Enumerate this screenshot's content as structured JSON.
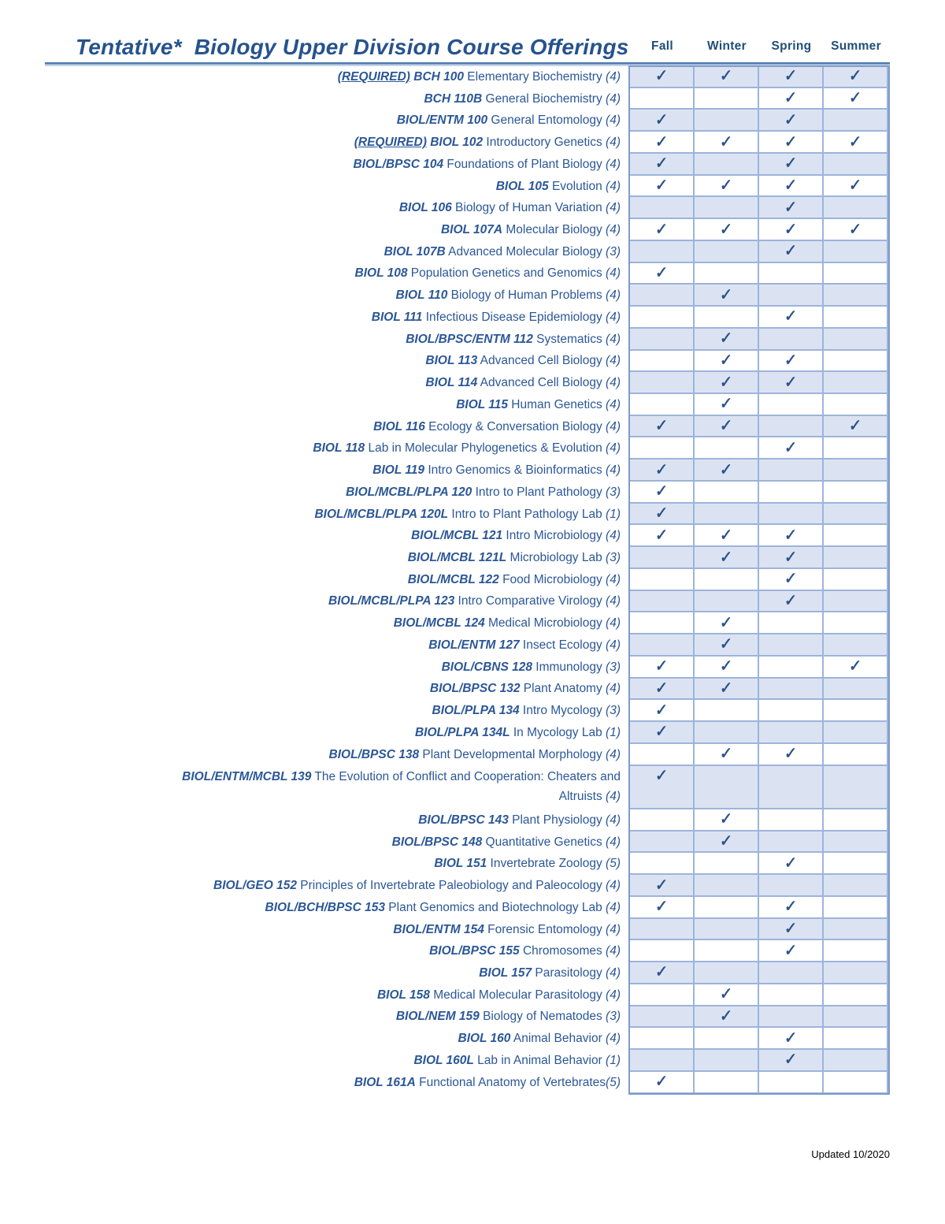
{
  "page": {
    "title": "Tentative*  Biology Upper Division Course Offerings",
    "columns": [
      "Fall",
      "Winter",
      "Spring",
      "Summer"
    ],
    "updated": "Updated 10/2020",
    "check_glyph": "✓"
  },
  "colors": {
    "text_blue": "#2b5797",
    "header_blue": "#1f4e79",
    "check_blue": "#2b5289",
    "row_shade": "#dbe3f3",
    "grid_line": "#9db4da",
    "grid_frame": "#7e9cc9",
    "title_rule": "#4f7bb0"
  },
  "courses": [
    {
      "req": "(REQUIRED)",
      "code": "BCH 100",
      "desc": "Elementary Biochemistry",
      "credit": "(4)",
      "checks": [
        1,
        1,
        1,
        1
      ]
    },
    {
      "code": "BCH 110B",
      "desc": "General Biochemistry",
      "credit": "(4)",
      "checks": [
        0,
        0,
        1,
        1
      ]
    },
    {
      "code": "BIOL/ENTM 100",
      "desc": "General Entomology",
      "credit": "(4)",
      "checks": [
        1,
        0,
        1,
        0
      ]
    },
    {
      "req": "(REQUIRED)",
      "code": "BIOL 102",
      "desc": "Introductory Genetics",
      "credit": "(4)",
      "checks": [
        1,
        1,
        1,
        1
      ]
    },
    {
      "code": "BIOL/BPSC 104",
      "desc": "Foundations of Plant Biology",
      "credit": "(4)",
      "checks": [
        1,
        0,
        1,
        0
      ]
    },
    {
      "code": "BIOL 105",
      "desc": "Evolution",
      "credit": "(4)",
      "checks": [
        1,
        1,
        1,
        1
      ]
    },
    {
      "code": "BIOL 106",
      "desc": "Biology of Human Variation",
      "credit": "(4)",
      "checks": [
        0,
        0,
        1,
        0
      ]
    },
    {
      "code": "BIOL 107A",
      "desc": "Molecular Biology",
      "credit": "(4)",
      "checks": [
        1,
        1,
        1,
        1
      ]
    },
    {
      "code": "BIOL 107B",
      "desc": "Advanced Molecular Biology",
      "credit": "(3)",
      "checks": [
        0,
        0,
        1,
        0
      ]
    },
    {
      "code": "BIOL 108",
      "desc": "Population Genetics and Genomics",
      "credit": "(4)",
      "checks": [
        1,
        0,
        0,
        0
      ]
    },
    {
      "code": "BIOL 110",
      "desc": "Biology of Human Problems",
      "credit": "(4)",
      "checks": [
        0,
        1,
        0,
        0
      ]
    },
    {
      "code": "BIOL 111",
      "desc": "Infectious Disease Epidemiology",
      "credit": "(4)",
      "checks": [
        0,
        0,
        1,
        0
      ]
    },
    {
      "code": "BIOL/BPSC/ENTM 112",
      "desc": "Systematics",
      "credit": "(4)",
      "checks": [
        0,
        1,
        0,
        0
      ]
    },
    {
      "code": "BIOL 113",
      "desc": "Advanced Cell Biology",
      "credit": "(4)",
      "checks": [
        0,
        1,
        1,
        0
      ]
    },
    {
      "code": "BIOL 114",
      "desc": "Advanced Cell Biology",
      "credit": "(4)",
      "checks": [
        0,
        1,
        1,
        0
      ]
    },
    {
      "code": "BIOL 115",
      "desc": "Human Genetics",
      "credit": "(4)",
      "checks": [
        0,
        1,
        0,
        0
      ]
    },
    {
      "code": "BIOL 116",
      "desc": "Ecology & Conversation Biology",
      "credit": "(4)",
      "checks": [
        1,
        1,
        0,
        1
      ]
    },
    {
      "code": "BIOL 118",
      "desc": "Lab in Molecular Phylogenetics & Evolution",
      "credit": "(4)",
      "checks": [
        0,
        0,
        1,
        0
      ]
    },
    {
      "code": "BIOL 119",
      "desc": "Intro Genomics & Bioinformatics",
      "credit": "(4)",
      "checks": [
        1,
        1,
        0,
        0
      ]
    },
    {
      "code": "BIOL/MCBL/PLPA 120",
      "desc": "Intro to Plant Pathology",
      "credit": "(3)",
      "checks": [
        1,
        0,
        0,
        0
      ]
    },
    {
      "code": "BIOL/MCBL/PLPA 120L",
      "desc": "Intro to Plant Pathology Lab",
      "credit": "(1)",
      "checks": [
        1,
        0,
        0,
        0
      ]
    },
    {
      "code": "BIOL/MCBL 121",
      "desc": "Intro Microbiology",
      "credit": "(4)",
      "checks": [
        1,
        1,
        1,
        0
      ]
    },
    {
      "code": "BIOL/MCBL 121L",
      "desc": "Microbiology Lab",
      "credit": "(3)",
      "checks": [
        0,
        1,
        1,
        0
      ]
    },
    {
      "code": "BIOL/MCBL 122",
      "desc": "Food Microbiology",
      "credit": "(4)",
      "checks": [
        0,
        0,
        1,
        0
      ]
    },
    {
      "code": "BIOL/MCBL/PLPA 123",
      "desc": "Intro Comparative Virology",
      "credit": "(4)",
      "checks": [
        0,
        0,
        1,
        0
      ]
    },
    {
      "code": "BIOL/MCBL 124",
      "desc": "Medical Microbiology",
      "credit": "(4)",
      "checks": [
        0,
        1,
        0,
        0
      ]
    },
    {
      "code": "BIOL/ENTM 127",
      "desc": "Insect Ecology",
      "credit": "(4)",
      "checks": [
        0,
        1,
        0,
        0
      ]
    },
    {
      "code": "BIOL/CBNS 128",
      "desc": "Immunology",
      "credit": "(3)",
      "checks": [
        1,
        1,
        0,
        1
      ]
    },
    {
      "code": "BIOL/BPSC 132",
      "desc": "Plant Anatomy",
      "credit": "(4)",
      "checks": [
        1,
        1,
        0,
        0
      ]
    },
    {
      "code": "BIOL/PLPA 134",
      "desc": "Intro Mycology",
      "credit": "(3)",
      "checks": [
        1,
        0,
        0,
        0
      ]
    },
    {
      "code": "BIOL/PLPA 134L",
      "desc": "In Mycology Lab",
      "credit": "(1)",
      "checks": [
        1,
        0,
        0,
        0
      ]
    },
    {
      "code": "BIOL/BPSC 138",
      "desc": "Plant Developmental Morphology",
      "credit": "(4)",
      "checks": [
        0,
        1,
        1,
        0
      ]
    },
    {
      "code": "BIOL/ENTM/MCBL 139",
      "desc": "The Evolution of Conflict and Cooperation: Cheaters and",
      "desc2": "Altruists",
      "credit": "(4)",
      "checks": [
        1,
        0,
        0,
        0
      ],
      "tall": true
    },
    {
      "code": "BIOL/BPSC 143",
      "desc": "Plant Physiology",
      "credit": "(4)",
      "checks": [
        0,
        1,
        0,
        0
      ]
    },
    {
      "code": "BIOL/BPSC 148",
      "desc": "Quantitative Genetics",
      "credit": "(4)",
      "checks": [
        0,
        1,
        0,
        0
      ]
    },
    {
      "code": "BIOL 151",
      "desc": "Invertebrate Zoology",
      "credit": "(5)",
      "checks": [
        0,
        0,
        1,
        0
      ]
    },
    {
      "code": "BIOL/GEO 152",
      "desc": "Principles of Invertebrate Paleobiology and Paleocology",
      "credit": "(4)",
      "checks": [
        1,
        0,
        0,
        0
      ]
    },
    {
      "code": "BIOL/BCH/BPSC 153",
      "desc": "Plant Genomics and Biotechnology Lab",
      "credit": "(4)",
      "checks": [
        1,
        0,
        1,
        0
      ]
    },
    {
      "code": "BIOL/ENTM 154",
      "desc": "Forensic Entomology",
      "credit": "(4)",
      "checks": [
        0,
        0,
        1,
        0
      ]
    },
    {
      "code": "BIOL/BPSC 155",
      "desc": "Chromosomes",
      "credit": "(4)",
      "checks": [
        0,
        0,
        1,
        0
      ]
    },
    {
      "code": "BIOL 157",
      "desc": "Parasitology",
      "credit": "(4)",
      "checks": [
        1,
        0,
        0,
        0
      ]
    },
    {
      "code": "BIOL 158",
      "desc": "Medical Molecular Parasitology",
      "credit": "(4)",
      "checks": [
        0,
        1,
        0,
        0
      ]
    },
    {
      "code": "BIOL/NEM 159",
      "desc": "Biology of Nematodes",
      "credit": "(3)",
      "checks": [
        0,
        1,
        0,
        0
      ]
    },
    {
      "code": "BIOL 160",
      "desc": "Animal Behavior",
      "credit": "(4)",
      "checks": [
        0,
        0,
        1,
        0
      ]
    },
    {
      "code": "BIOL 160L",
      "desc": "Lab in Animal Behavior",
      "credit": "(1)",
      "checks": [
        0,
        0,
        1,
        0
      ]
    },
    {
      "code": "BIOL 161A",
      "desc": "Functional Anatomy of Vertebrates",
      "credit": "(5)",
      "checks": [
        1,
        0,
        0,
        0
      ],
      "nospace": true
    }
  ]
}
